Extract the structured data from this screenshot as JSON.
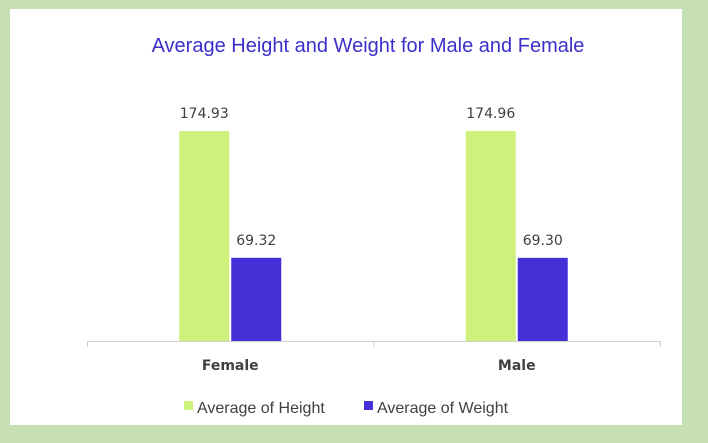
{
  "colors": {
    "height": "#cef17b",
    "weight": "#4530d8",
    "title": "#3b2fc9",
    "background": "#c6e0b4"
  },
  "chart_data": {
    "type": "bar",
    "title": "Average Height and Weight for Male and Female",
    "categories": [
      "Female",
      "Male"
    ],
    "series": [
      {
        "name": "Average of Height",
        "values": [
          174.93,
          174.96
        ],
        "labels": [
          "174.93",
          "174.96"
        ]
      },
      {
        "name": "Average of Weight",
        "values": [
          69.32,
          69.3
        ],
        "labels": [
          "69.32",
          "69.30"
        ]
      }
    ],
    "ylim": [
      0,
      200
    ],
    "grid": false,
    "legend": "bottom"
  }
}
